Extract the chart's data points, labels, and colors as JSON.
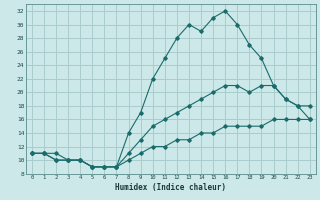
{
  "title": "",
  "xlabel": "Humidex (Indice chaleur)",
  "bg_color": "#cce8e8",
  "grid_color": "#aacccc",
  "line_color": "#1a6b6b",
  "xlim": [
    -0.5,
    23.5
  ],
  "ylim": [
    8,
    33
  ],
  "xticks": [
    0,
    1,
    2,
    3,
    4,
    5,
    6,
    7,
    8,
    9,
    10,
    11,
    12,
    13,
    14,
    15,
    16,
    17,
    18,
    19,
    20,
    21,
    22,
    23
  ],
  "yticks": [
    8,
    10,
    12,
    14,
    16,
    18,
    20,
    22,
    24,
    26,
    28,
    30,
    32
  ],
  "line1_x": [
    0,
    1,
    2,
    3,
    4,
    5,
    6,
    7,
    8,
    9,
    10,
    11,
    12,
    13,
    14,
    15,
    16,
    17,
    18,
    19,
    20,
    21,
    22,
    23
  ],
  "line1_y": [
    11,
    11,
    11,
    10,
    10,
    9,
    9,
    9,
    14,
    17,
    22,
    25,
    28,
    30,
    29,
    31,
    32,
    30,
    27,
    25,
    21,
    19,
    18,
    18
  ],
  "line2_x": [
    0,
    1,
    2,
    3,
    4,
    5,
    6,
    7,
    8,
    9,
    10,
    11,
    12,
    13,
    14,
    15,
    16,
    17,
    18,
    19,
    20,
    21,
    22,
    23
  ],
  "line2_y": [
    11,
    11,
    10,
    10,
    10,
    9,
    9,
    9,
    11,
    13,
    15,
    16,
    17,
    18,
    19,
    20,
    21,
    21,
    20,
    21,
    21,
    19,
    18,
    16
  ],
  "line3_x": [
    0,
    1,
    2,
    3,
    4,
    5,
    6,
    7,
    8,
    9,
    10,
    11,
    12,
    13,
    14,
    15,
    16,
    17,
    18,
    19,
    20,
    21,
    22,
    23
  ],
  "line3_y": [
    11,
    11,
    10,
    10,
    10,
    9,
    9,
    9,
    10,
    11,
    12,
    12,
    13,
    13,
    14,
    14,
    15,
    15,
    15,
    15,
    16,
    16,
    16,
    16
  ]
}
